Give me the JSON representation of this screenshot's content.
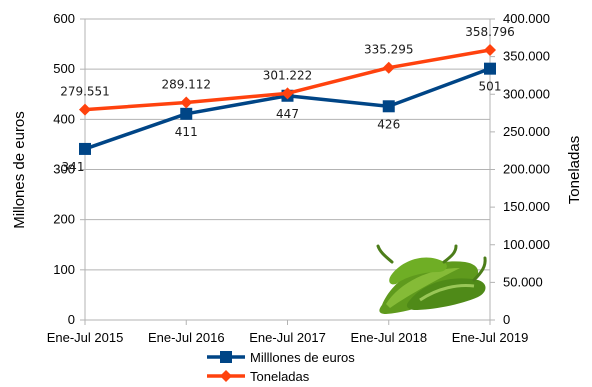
{
  "chart_data": {
    "type": "line",
    "categories": [
      "Ene-Jul 2015",
      "Ene-Jul 2016",
      "Ene-Jul 2017",
      "Ene-Jul 2018",
      "Ene-Jul 2019"
    ],
    "y_left_label": "Millones de euros",
    "y_right_label": "Toneladas",
    "y_left_range": [
      0,
      600
    ],
    "y_right_range": [
      0,
      400000
    ],
    "y_left_ticks": [
      "0",
      "100",
      "200",
      "300",
      "400",
      "500",
      "600"
    ],
    "y_right_ticks": [
      "0",
      "50.000",
      "100.000",
      "150.000",
      "200.000",
      "250.000",
      "300.000",
      "350.000",
      "400.000"
    ],
    "grid": "horizontal",
    "legend_position": "bottom",
    "series": [
      {
        "name": "Milllones de euros",
        "axis": "left",
        "color": "#004586",
        "marker": "square",
        "values": [
          341,
          411,
          447,
          426,
          501
        ],
        "labels": [
          "341",
          "411",
          "447",
          "426",
          "501"
        ]
      },
      {
        "name": "Toneladas",
        "axis": "right",
        "color": "#ff420e",
        "marker": "diamond",
        "values": [
          279551,
          289112,
          301222,
          335295,
          358796
        ],
        "labels": [
          "279.551",
          "289.112",
          "301.222",
          "335.295",
          "358.796"
        ]
      }
    ],
    "decoration": "green-peppers-image"
  }
}
